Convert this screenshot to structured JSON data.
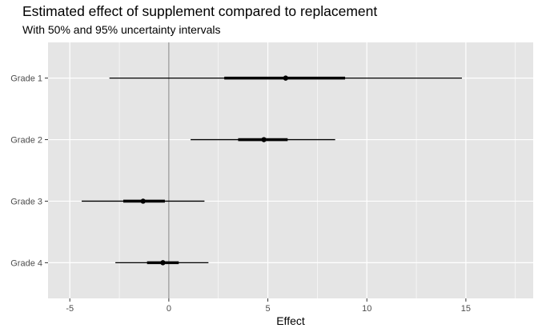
{
  "chart_data": {
    "type": "interval",
    "title": "Estimated effect of supplement compared to replacement",
    "subtitle": "With 50% and 95% uncertainty intervals",
    "xlabel": "Effect",
    "ylabel": "",
    "xlim": [
      -6.1,
      18.4
    ],
    "x_ticks": [
      -5,
      0,
      5,
      10,
      15
    ],
    "reference_line": 0,
    "grid": true,
    "categories": [
      "Grade 1",
      "Grade 2",
      "Grade 3",
      "Grade 4"
    ],
    "series": [
      {
        "category": "Grade 1",
        "estimate": 5.9,
        "ci50": [
          2.8,
          8.9
        ],
        "ci95": [
          -3.0,
          14.8
        ]
      },
      {
        "category": "Grade 2",
        "estimate": 4.8,
        "ci50": [
          3.5,
          6.0
        ],
        "ci95": [
          1.1,
          8.4
        ]
      },
      {
        "category": "Grade 3",
        "estimate": -1.3,
        "ci50": [
          -2.3,
          -0.2
        ],
        "ci95": [
          -4.4,
          1.8
        ]
      },
      {
        "category": "Grade 4",
        "estimate": -0.3,
        "ci50": [
          -1.1,
          0.5
        ],
        "ci95": [
          -2.7,
          2.0
        ]
      }
    ],
    "colors": {
      "panel": "#e5e5e5",
      "grid": "#ffffff",
      "reference": "#808080",
      "mark": "#000000",
      "tick": "#4d4d4d"
    }
  }
}
